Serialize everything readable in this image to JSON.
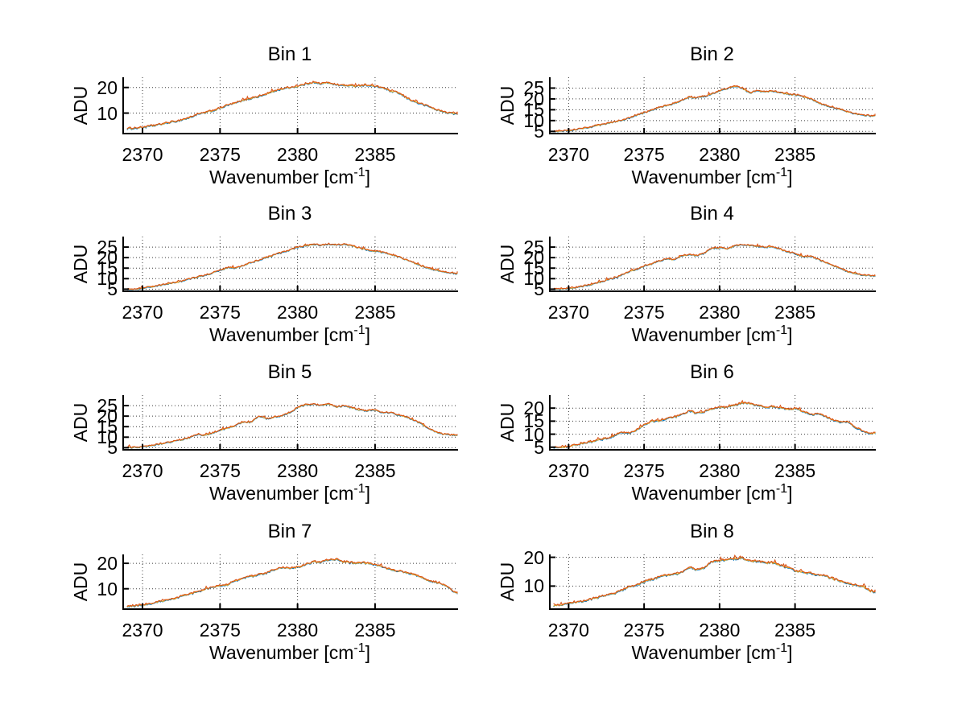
{
  "figure": {
    "background": "#ffffff",
    "text_color": "#000000",
    "grid_color": "#3a3a3a",
    "axis_color": "#000000"
  },
  "series_styles": [
    {
      "name": "spectrum-blue",
      "color": "#0072BD",
      "offset": 0.0
    },
    {
      "name": "spectrum-yellow",
      "color": "#EDB120",
      "offset": 0.15
    },
    {
      "name": "spectrum-orange",
      "color": "#D95319",
      "offset": 0.3
    }
  ],
  "noise_amplitude": 0.3,
  "xlabel_main": "Wavenumber [cm",
  "xlabel_sup": "-1",
  "xlabel_close": "]",
  "ylabel": "ADU",
  "chart_data": [
    {
      "type": "line",
      "title": "Bin 1",
      "ylabel": "ADU",
      "xlabel": "Wavenumber [cm^-1]",
      "xlim": [
        2368.7,
        2390.3
      ],
      "ylim": [
        2,
        24
      ],
      "xticks": [
        2370,
        2375,
        2380,
        2385
      ],
      "yticks": [
        10,
        20
      ],
      "grid": true,
      "legend": "none",
      "x_start": 2369,
      "x_step": 0.5,
      "y": [
        3.8,
        4.0,
        4.3,
        4.8,
        5.3,
        5.9,
        6.5,
        7.2,
        8.0,
        9.3,
        10.0,
        10.8,
        11.8,
        13.0,
        13.8,
        14.8,
        15.7,
        16.4,
        17.3,
        18.5,
        19.3,
        19.9,
        20.3,
        21.2,
        21.9,
        21.3,
        21.8,
        20.9,
        20.7,
        20.5,
        20.6,
        20.8,
        20.3,
        19.8,
        18.4,
        17.8,
        15.9,
        14.4,
        13.4,
        12.4,
        11.0,
        10.3,
        9.8,
        9.4
      ]
    },
    {
      "type": "line",
      "title": "Bin 2",
      "ylabel": "ADU",
      "xlabel": "Wavenumber [cm^-1]",
      "xlim": [
        2368.7,
        2390.3
      ],
      "ylim": [
        4,
        30
      ],
      "xticks": [
        2370,
        2375,
        2380,
        2385
      ],
      "yticks": [
        5,
        10,
        15,
        20,
        25
      ],
      "grid": true,
      "legend": "none",
      "x_start": 2369,
      "x_step": 0.5,
      "y": [
        5.0,
        5.1,
        5.3,
        5.8,
        6.4,
        7.0,
        7.7,
        8.4,
        9.2,
        10.1,
        11.0,
        12.4,
        13.4,
        14.7,
        15.9,
        16.9,
        17.9,
        19.1,
        20.8,
        20.4,
        21.0,
        22.2,
        23.6,
        24.6,
        25.9,
        24.8,
        22.6,
        23.8,
        23.2,
        23.4,
        22.8,
        22.1,
        21.8,
        21.0,
        19.9,
        18.4,
        17.0,
        16.0,
        14.9,
        13.9,
        13.1,
        12.5,
        12.1,
        12.4
      ]
    },
    {
      "type": "line",
      "title": "Bin 3",
      "ylabel": "ADU",
      "xlabel": "Wavenumber [cm^-1]",
      "xlim": [
        2368.7,
        2390.3
      ],
      "ylim": [
        4,
        30
      ],
      "xticks": [
        2370,
        2375,
        2380,
        2385
      ],
      "yticks": [
        5,
        10,
        15,
        20,
        25
      ],
      "grid": true,
      "legend": "none",
      "x_start": 2369,
      "x_step": 0.5,
      "y": [
        4.8,
        5.0,
        5.4,
        5.9,
        6.5,
        7.2,
        7.9,
        8.7,
        9.6,
        10.5,
        11.4,
        12.6,
        13.8,
        15.2,
        15.0,
        16.2,
        17.5,
        18.7,
        19.9,
        21.2,
        22.3,
        23.4,
        24.8,
        25.4,
        26.2,
        25.6,
        26.4,
        25.9,
        26.2,
        25.5,
        24.4,
        23.6,
        23.0,
        22.4,
        21.4,
        20.3,
        18.9,
        17.4,
        15.9,
        14.7,
        13.7,
        13.0,
        12.5,
        12.3
      ]
    },
    {
      "type": "line",
      "title": "Bin 4",
      "ylabel": "ADU",
      "xlabel": "Wavenumber [cm^-1]",
      "xlim": [
        2368.7,
        2390.3
      ],
      "ylim": [
        4,
        30
      ],
      "xticks": [
        2370,
        2375,
        2380,
        2385
      ],
      "yticks": [
        5,
        10,
        15,
        20,
        25
      ],
      "grid": true,
      "legend": "none",
      "x_start": 2369,
      "x_step": 0.5,
      "y": [
        4.9,
        5.0,
        5.2,
        5.6,
        6.3,
        7.1,
        8.0,
        9.0,
        10.2,
        11.5,
        13.3,
        14.3,
        15.9,
        16.8,
        18.4,
        19.4,
        19.0,
        20.8,
        21.4,
        20.7,
        22.0,
        24.3,
        24.7,
        24.1,
        25.4,
        25.9,
        25.8,
        25.3,
        24.9,
        25.2,
        23.9,
        22.6,
        21.9,
        20.3,
        20.6,
        19.2,
        17.7,
        16.2,
        14.7,
        13.2,
        12.2,
        11.6,
        11.3,
        11.2
      ]
    },
    {
      "type": "line",
      "title": "Bin 5",
      "ylabel": "ADU",
      "xlabel": "Wavenumber [cm^-1]",
      "xlim": [
        2368.7,
        2390.3
      ],
      "ylim": [
        4,
        30
      ],
      "xticks": [
        2370,
        2375,
        2380,
        2385
      ],
      "yticks": [
        5,
        10,
        15,
        20,
        25
      ],
      "grid": true,
      "legend": "none",
      "x_start": 2369,
      "x_step": 0.5,
      "y": [
        4.9,
        5.1,
        5.4,
        5.9,
        6.5,
        7.2,
        7.9,
        8.7,
        9.6,
        11.2,
        10.9,
        11.8,
        13.2,
        14.2,
        15.4,
        17.2,
        17.0,
        19.8,
        18.6,
        19.4,
        20.2,
        21.6,
        23.9,
        25.3,
        25.6,
        24.9,
        25.9,
        24.4,
        24.7,
        23.9,
        22.9,
        22.4,
        22.7,
        21.4,
        21.7,
        20.4,
        19.4,
        17.9,
        16.4,
        13.9,
        11.9,
        11.2,
        10.9,
        10.8
      ]
    },
    {
      "type": "line",
      "title": "Bin 6",
      "ylabel": "ADU",
      "xlabel": "Wavenumber [cm^-1]",
      "xlim": [
        2368.7,
        2390.3
      ],
      "ylim": [
        4,
        25
      ],
      "xticks": [
        2370,
        2375,
        2380,
        2385
      ],
      "yticks": [
        5,
        10,
        15,
        20
      ],
      "grid": true,
      "legend": "none",
      "x_start": 2369,
      "x_step": 0.5,
      "y": [
        4.9,
        4.7,
        5.2,
        5.8,
        6.4,
        7.0,
        7.6,
        8.3,
        9.0,
        10.6,
        10.2,
        11.4,
        13.4,
        14.9,
        15.1,
        15.9,
        16.4,
        17.4,
        18.9,
        17.9,
        18.5,
        19.7,
        20.4,
        20.1,
        20.9,
        21.9,
        21.7,
        20.9,
        20.2,
        20.5,
        19.9,
        19.4,
        19.7,
        18.7,
        17.4,
        17.7,
        16.7,
        15.4,
        14.4,
        14.7,
        12.4,
        11.0,
        10.2,
        10.4
      ]
    },
    {
      "type": "line",
      "title": "Bin 7",
      "ylabel": "ADU",
      "xlabel": "Wavenumber [cm^-1]",
      "xlim": [
        2368.7,
        2390.3
      ],
      "ylim": [
        2,
        23.5
      ],
      "xticks": [
        2370,
        2375,
        2380,
        2385
      ],
      "yticks": [
        10,
        20
      ],
      "grid": true,
      "legend": "none",
      "x_start": 2369,
      "x_step": 0.5,
      "y": [
        3.0,
        3.2,
        3.6,
        4.1,
        4.7,
        5.4,
        6.1,
        6.8,
        7.6,
        8.6,
        9.6,
        10.3,
        11.0,
        11.6,
        12.9,
        14.1,
        14.7,
        15.4,
        16.1,
        17.4,
        18.2,
        17.9,
        18.4,
        19.3,
        20.4,
        20.3,
        21.2,
        21.4,
        20.4,
        20.1,
        19.9,
        20.0,
        19.4,
        18.4,
        17.4,
        16.9,
        16.1,
        15.4,
        14.4,
        12.9,
        12.4,
        11.4,
        8.9,
        7.9
      ]
    },
    {
      "type": "line",
      "title": "Bin 8",
      "ylabel": "ADU",
      "xlabel": "Wavenumber [cm^-1]",
      "xlim": [
        2368.7,
        2390.3
      ],
      "ylim": [
        2,
        21
      ],
      "xticks": [
        2370,
        2375,
        2380,
        2385
      ],
      "yticks": [
        10,
        20
      ],
      "grid": true,
      "legend": "none",
      "x_start": 2369,
      "x_step": 0.5,
      "y": [
        3.0,
        3.4,
        3.9,
        4.4,
        4.6,
        5.3,
        6.1,
        6.6,
        7.4,
        8.4,
        9.6,
        10.1,
        11.4,
        12.1,
        13.1,
        13.7,
        13.9,
        14.6,
        16.4,
        15.7,
        16.3,
        18.4,
        18.6,
        19.1,
        19.3,
        19.6,
        18.7,
        18.5,
        17.9,
        18.1,
        17.1,
        16.4,
        15.2,
        14.6,
        14.4,
        13.8,
        13.4,
        12.4,
        11.7,
        10.9,
        10.2,
        9.7,
        8.2,
        7.4
      ]
    }
  ]
}
